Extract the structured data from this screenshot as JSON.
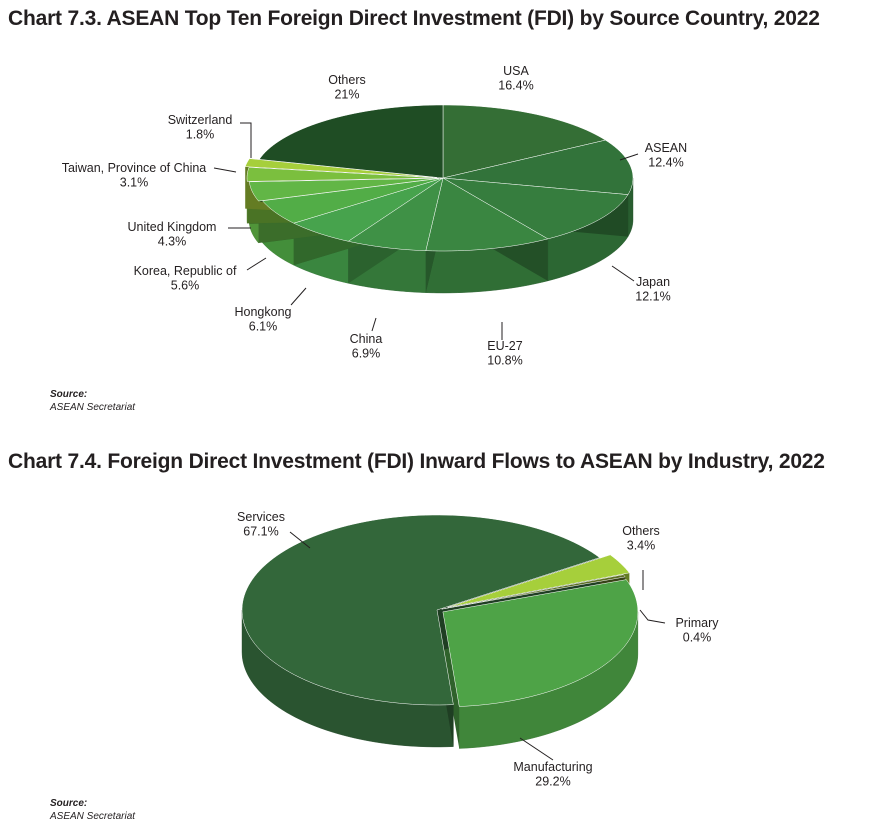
{
  "charts": [
    {
      "title": "Chart 7.3. ASEAN Top Ten Foreign Direct Investment (FDI) by Source Country, 2022",
      "source_heading": "Source:",
      "source_text": "ASEAN Secretariat"
    },
    {
      "title": "Chart 7.4. Foreign Direct Investment (FDI) Inward Flows to ASEAN by Industry, 2022",
      "source_heading": "Source:",
      "source_text": "ASEAN Secretariat"
    }
  ],
  "chart_data": [
    {
      "type": "pie",
      "style": "3d-exploded",
      "title": "Chart 7.3. ASEAN Top Ten Foreign Direct Investment (FDI) by Source Country, 2022",
      "unit": "%",
      "slices": [
        {
          "label": "USA",
          "value": 16.4,
          "value_label": "16.4%",
          "color": "#346e35"
        },
        {
          "label": "ASEAN",
          "value": 12.4,
          "value_label": "12.4%",
          "color": "#32733a"
        },
        {
          "label": "Japan",
          "value": 12.1,
          "value_label": "12.1%",
          "color": "#367d3e"
        },
        {
          "label": "EU-27",
          "value": 10.8,
          "value_label": "10.8%",
          "color": "#3a8641"
        },
        {
          "label": "China",
          "value": 6.9,
          "value_label": "6.9%",
          "color": "#3f9146"
        },
        {
          "label": "Hongkong",
          "value": 6.1,
          "value_label": "6.1%",
          "color": "#47a34d"
        },
        {
          "label": "Korea, Republic of",
          "value": 5.6,
          "value_label": "5.6%",
          "color": "#52ad47"
        },
        {
          "label": "United Kingdom",
          "value": 4.3,
          "value_label": "4.3%",
          "color": "#62b646"
        },
        {
          "label": "Taiwan, Province of China",
          "value": 3.1,
          "value_label": "3.1%",
          "color": "#7bbf3e"
        },
        {
          "label": "Switzerland",
          "value": 1.8,
          "value_label": "1.8%",
          "color": "#a6cf3b"
        },
        {
          "label": "Others",
          "value": 21,
          "value_label": "21%",
          "color": "#1f4d24"
        }
      ],
      "legend": "none"
    },
    {
      "type": "pie",
      "style": "3d-exploded",
      "title": "Chart 7.4. Foreign Direct Investment (FDI) Inward Flows to ASEAN by Industry, 2022",
      "unit": "%",
      "slices": [
        {
          "label": "Others",
          "value": 3.4,
          "value_label": "3.4%",
          "color": "#a6cf3b"
        },
        {
          "label": "Primary",
          "value": 0.4,
          "value_label": "0.4%",
          "color": "#5c6e25"
        },
        {
          "label": "Manufacturing",
          "value": 29.2,
          "value_label": "29.2%",
          "color": "#4ea347"
        },
        {
          "label": "Services",
          "value": 67.1,
          "value_label": "67.1%",
          "color": "#33673a"
        }
      ],
      "legend": "none"
    }
  ]
}
